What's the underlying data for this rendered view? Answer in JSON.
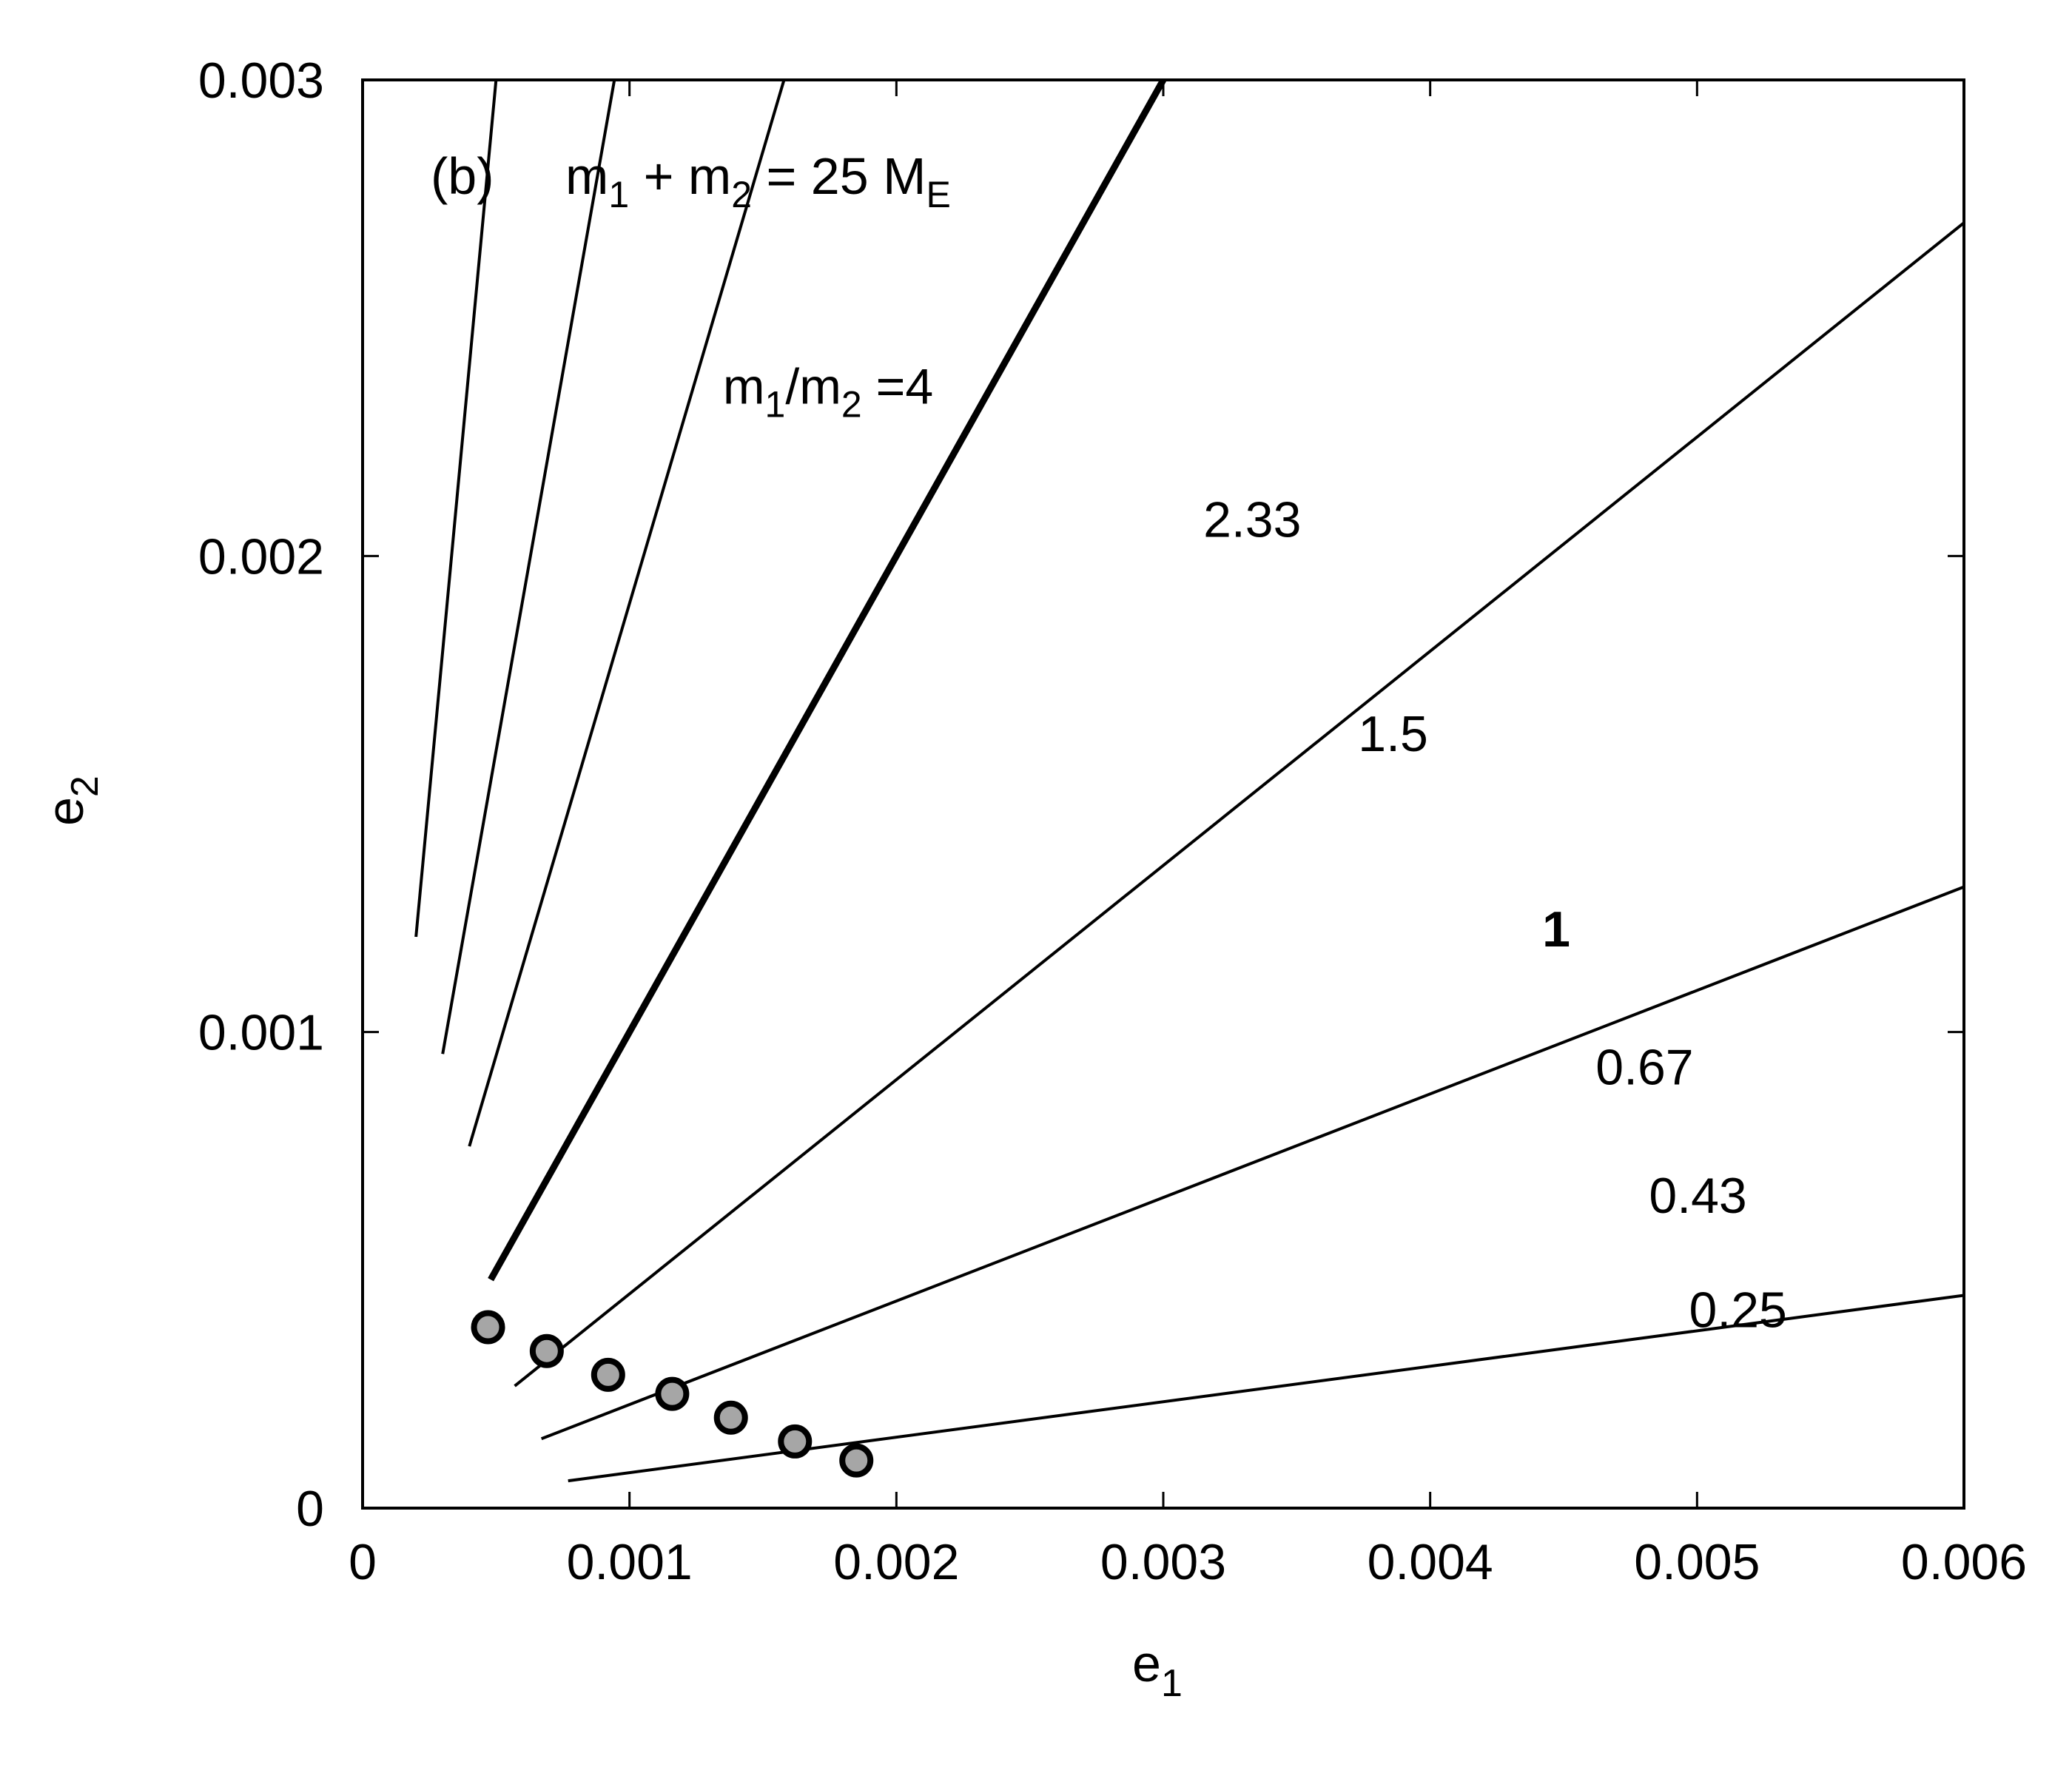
{
  "chart_data": {
    "type": "line",
    "panel_label": "(b)",
    "title": {
      "text": "m",
      "sub1": "1",
      "mid": " + m",
      "sub2": "2",
      "rest": " = 25 M",
      "sub3": "E"
    },
    "xlabel": {
      "text": "e",
      "sub": "1"
    },
    "ylabel": {
      "text": "e",
      "sub": "2"
    },
    "xlim": [
      0,
      0.006
    ],
    "ylim": [
      0,
      0.003
    ],
    "xticks": [
      "0",
      "0.001",
      "0.002",
      "0.003",
      "0.004",
      "0.005",
      "0.006"
    ],
    "yticks": [
      "0",
      "0.001",
      "0.002",
      "0.003"
    ],
    "xtick_values": [
      0,
      0.001,
      0.002,
      0.003,
      0.004,
      0.005,
      0.006
    ],
    "ytick_values": [
      0,
      0.001,
      0.002,
      0.003
    ],
    "grid": false,
    "series_prefix": {
      "text": "m",
      "sub1": "1",
      "mid": "/m",
      "sub2": "2",
      "rest": " = "
    },
    "series": [
      {
        "name": "4",
        "slope": 6.0,
        "x_start": 0.0002,
        "marker": [
          0.00047,
          0.00038
        ],
        "label_pos": [
          0.00135,
          0.00232
        ],
        "bold": false
      },
      {
        "name": "2.33",
        "slope": 3.18,
        "x_start": 0.0003,
        "marker": [
          0.00069,
          0.00033
        ],
        "label_pos": [
          0.00315,
          0.00204
        ],
        "bold": false
      },
      {
        "name": "1.5",
        "slope": 1.9,
        "x_start": 0.0004,
        "marker": [
          0.00092,
          0.00028
        ],
        "label_pos": [
          0.00373,
          0.00159
        ],
        "bold": false
      },
      {
        "name": "1",
        "slope": 1.0,
        "x_start": 0.00048,
        "marker": [
          0.00116,
          0.00024
        ],
        "label_pos": [
          0.00442,
          0.00118
        ],
        "bold": true
      },
      {
        "name": "0.67",
        "slope": 0.45,
        "x_start": 0.00057,
        "marker": [
          0.00138,
          0.00019
        ],
        "label_pos": [
          0.00462,
          0.00089
        ],
        "bold": false
      },
      {
        "name": "0.43",
        "slope": 0.2175,
        "x_start": 0.00067,
        "marker": [
          0.00162,
          0.00014
        ],
        "label_pos": [
          0.00482,
          0.00062
        ],
        "bold": false
      },
      {
        "name": "0.25",
        "slope": 0.0745,
        "x_start": 0.00077,
        "marker": [
          0.00185,
          0.0001
        ],
        "label_pos": [
          0.00497,
          0.00038
        ],
        "bold": false
      }
    ],
    "marker_color": "#a6a6a6",
    "line_color": "#000000"
  }
}
